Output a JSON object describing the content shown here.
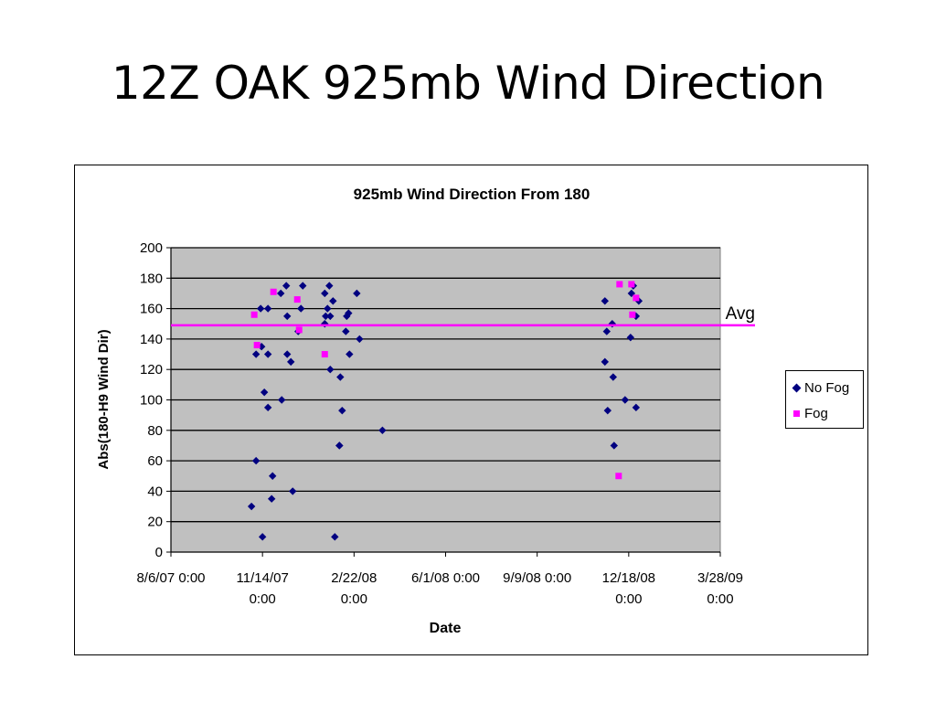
{
  "slide": {
    "title": "12Z OAK 925mb Wind Direction"
  },
  "chart_data": {
    "type": "scatter",
    "title": "925mb Wind Direction From 180",
    "xlabel": "Date",
    "ylabel": "Abs(180-H9 Wind Dir)",
    "xlim": [
      "2007-08-06",
      "2009-03-28"
    ],
    "ylim": [
      0,
      200
    ],
    "yticks": [
      0,
      20,
      40,
      60,
      80,
      100,
      120,
      140,
      160,
      180,
      200
    ],
    "xticks": [
      {
        "date": "2007-08-06",
        "line1": "8/6/07 0:00",
        "line2": ""
      },
      {
        "date": "2007-11-14",
        "line1": "11/14/07",
        "line2": "0:00"
      },
      {
        "date": "2008-02-22",
        "line1": "2/22/08",
        "line2": "0:00"
      },
      {
        "date": "2008-06-01",
        "line1": "6/1/08 0:00",
        "line2": ""
      },
      {
        "date": "2008-09-09",
        "line1": "9/9/08 0:00",
        "line2": ""
      },
      {
        "date": "2008-12-18",
        "line1": "12/18/08",
        "line2": "0:00"
      },
      {
        "date": "2009-03-28",
        "line1": "3/28/09",
        "line2": "0:00"
      }
    ],
    "grid": true,
    "legend_position": "right",
    "colors": {
      "plot_bg": "#c0c0c0",
      "no_fog": "#000080",
      "fog": "#ff00ff",
      "avg": "#ff00ff"
    },
    "avg_line": {
      "label": "Avg",
      "value": 149
    },
    "series": [
      {
        "name": "No Fog",
        "marker": "diamond",
        "points": [
          [
            "2007-11-02",
            30
          ],
          [
            "2007-11-07",
            130
          ],
          [
            "2007-11-07",
            60
          ],
          [
            "2007-11-12",
            160
          ],
          [
            "2007-11-13",
            135
          ],
          [
            "2007-11-14",
            10
          ],
          [
            "2007-11-16",
            105
          ],
          [
            "2007-11-20",
            130
          ],
          [
            "2007-11-20",
            95
          ],
          [
            "2007-11-20",
            160
          ],
          [
            "2007-11-25",
            50
          ],
          [
            "2007-11-24",
            35
          ],
          [
            "2007-12-04",
            170
          ],
          [
            "2007-12-05",
            100
          ],
          [
            "2007-12-10",
            175
          ],
          [
            "2007-12-11",
            155
          ],
          [
            "2007-12-11",
            130
          ],
          [
            "2007-12-15",
            125
          ],
          [
            "2007-12-17",
            40
          ],
          [
            "2007-12-23",
            145
          ],
          [
            "2007-12-26",
            160
          ],
          [
            "2007-12-28",
            175
          ],
          [
            "2008-01-21",
            170
          ],
          [
            "2008-01-21",
            150
          ],
          [
            "2008-01-22",
            155
          ],
          [
            "2008-01-24",
            160
          ],
          [
            "2008-01-26",
            175
          ],
          [
            "2008-01-27",
            155
          ],
          [
            "2008-01-27",
            120
          ],
          [
            "2008-01-30",
            165
          ],
          [
            "2008-02-01",
            10
          ],
          [
            "2008-02-06",
            70
          ],
          [
            "2008-02-06",
            70
          ],
          [
            "2008-02-07",
            115
          ],
          [
            "2008-02-09",
            93
          ],
          [
            "2008-02-13",
            145
          ],
          [
            "2008-02-14",
            155
          ],
          [
            "2008-02-16",
            157
          ],
          [
            "2008-02-17",
            130
          ],
          [
            "2008-02-25",
            170
          ],
          [
            "2008-02-28",
            140
          ],
          [
            "2008-03-24",
            80
          ],
          [
            "2008-11-22",
            125
          ],
          [
            "2008-11-22",
            165
          ],
          [
            "2008-11-24",
            145
          ],
          [
            "2008-11-25",
            93
          ],
          [
            "2008-11-30",
            150
          ],
          [
            "2008-12-01",
            115
          ],
          [
            "2008-12-02",
            70
          ],
          [
            "2008-12-14",
            100
          ],
          [
            "2008-12-20",
            141
          ],
          [
            "2008-12-21",
            170
          ],
          [
            "2008-12-23",
            175
          ],
          [
            "2008-12-26",
            155
          ],
          [
            "2008-12-26",
            95
          ],
          [
            "2008-12-29",
            165
          ]
        ]
      },
      {
        "name": "Fog",
        "marker": "square",
        "points": [
          [
            "2007-11-05",
            156
          ],
          [
            "2007-11-08",
            136
          ],
          [
            "2007-11-26",
            171
          ],
          [
            "2007-12-22",
            166
          ],
          [
            "2007-12-24",
            146
          ],
          [
            "2008-01-21",
            130
          ],
          [
            "2008-12-08",
            176
          ],
          [
            "2008-12-07",
            50
          ],
          [
            "2008-12-21",
            176
          ],
          [
            "2008-12-22",
            156
          ],
          [
            "2008-12-26",
            167
          ]
        ]
      }
    ]
  }
}
